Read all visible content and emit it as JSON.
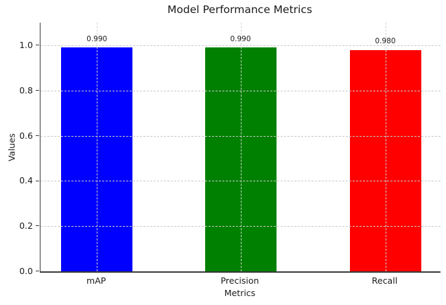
{
  "chart_data": {
    "type": "bar",
    "title": "Model Performance Metrics",
    "xlabel": "Metrics",
    "ylabel": "Values",
    "categories": [
      "mAP",
      "Precision",
      "Recall"
    ],
    "values": [
      0.99,
      0.99,
      0.98
    ],
    "bar_labels": [
      "0.990",
      "0.990",
      "0.980"
    ],
    "bar_colors": [
      "#0000ff",
      "#008000",
      "#ff0000"
    ],
    "ylim": [
      0,
      1.1
    ],
    "yticks": [
      0.0,
      0.2,
      0.4,
      0.6,
      0.8,
      1.0
    ],
    "ytick_labels": [
      "0.0",
      "0.2",
      "0.4",
      "0.6",
      "0.8",
      "1.0"
    ],
    "grid": "on",
    "grid_style": "dashed",
    "legend": "none",
    "spines": [
      "left",
      "bottom"
    ]
  },
  "colors": {
    "background": "#ffffff",
    "axis": "#3a3a3a",
    "grid": "#c9c9c9",
    "text": "#1a1a1a"
  }
}
